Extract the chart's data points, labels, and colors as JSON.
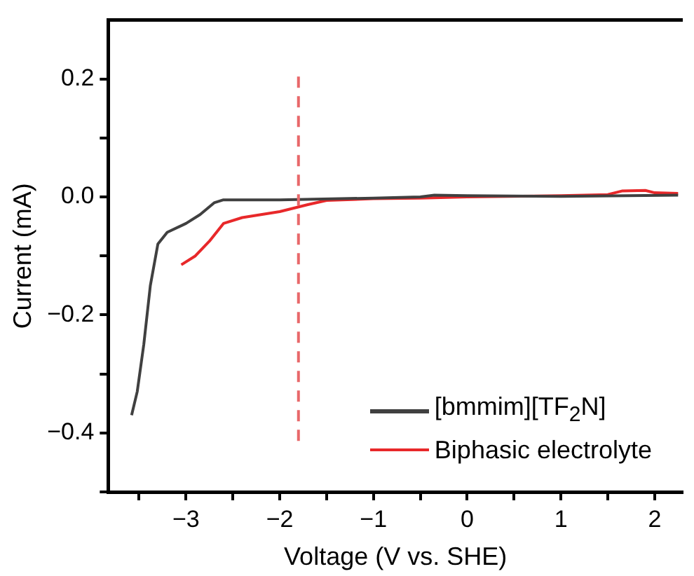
{
  "chart_data": {
    "type": "line",
    "xlabel": "Voltage (V vs. SHE)",
    "ylabel": "Current (mA)",
    "xlim": [
      -3.83,
      2.3
    ],
    "ylim": [
      -0.5,
      0.3
    ],
    "xticks": [
      {
        "value": -3.5,
        "label": null
      },
      {
        "value": -3,
        "label": "−3"
      },
      {
        "value": -2.5,
        "label": null
      },
      {
        "value": -2,
        "label": "−2"
      },
      {
        "value": -1.5,
        "label": null
      },
      {
        "value": -1,
        "label": "−1"
      },
      {
        "value": -0.5,
        "label": null
      },
      0,
      {
        "value": 0.5,
        "label": null
      },
      1,
      {
        "value": 1.5,
        "label": null
      },
      2
    ],
    "yticks": [
      {
        "value": -0.5,
        "label": null
      },
      {
        "value": -0.4,
        "label": "−0.4"
      },
      {
        "value": -0.3,
        "label": null
      },
      {
        "value": -0.2,
        "label": "−0.2"
      },
      {
        "value": -0.1,
        "label": null
      },
      {
        "value": 0,
        "label": "0.0"
      },
      {
        "value": 0.1,
        "label": null
      },
      0.2
    ],
    "grid": false,
    "legend": "bottom right",
    "marker": "none",
    "line_style": "solid",
    "ref_lines": [
      {
        "axis": "x",
        "value": -1.8,
        "label": null,
        "color": "#e8686a",
        "line_style": "dashed"
      }
    ],
    "series": [
      {
        "name": "[bmmim][TF$_{2}$N]",
        "color": "#404040",
        "x": [
          -3.58,
          -3.52,
          -3.45,
          -3.38,
          -3.3,
          -3.2,
          -3.0,
          -2.85,
          -2.7,
          -2.6,
          -2.0,
          -1.0,
          -0.5,
          -0.35,
          0,
          1,
          2.25
        ],
        "values": [
          -0.37,
          -0.33,
          -0.25,
          -0.15,
          -0.08,
          -0.06,
          -0.045,
          -0.03,
          -0.01,
          -0.005,
          -0.005,
          -0.002,
          0.0,
          0.003,
          0.002,
          0.001,
          0.003
        ]
      },
      {
        "name": "Biphasic electrolyte",
        "color": "#e8282a",
        "x": [
          -3.05,
          -2.9,
          -2.75,
          -2.6,
          -2.4,
          -2.0,
          -1.7,
          -1.5,
          -1,
          -0.5,
          0,
          1,
          1.5,
          1.65,
          1.9,
          2.0,
          2.25
        ],
        "values": [
          -0.115,
          -0.1,
          -0.075,
          -0.045,
          -0.035,
          -0.025,
          -0.013,
          -0.006,
          -0.003,
          -0.002,
          0,
          0.002,
          0.004,
          0.01,
          0.011,
          0.007,
          0.006
        ]
      }
    ]
  }
}
